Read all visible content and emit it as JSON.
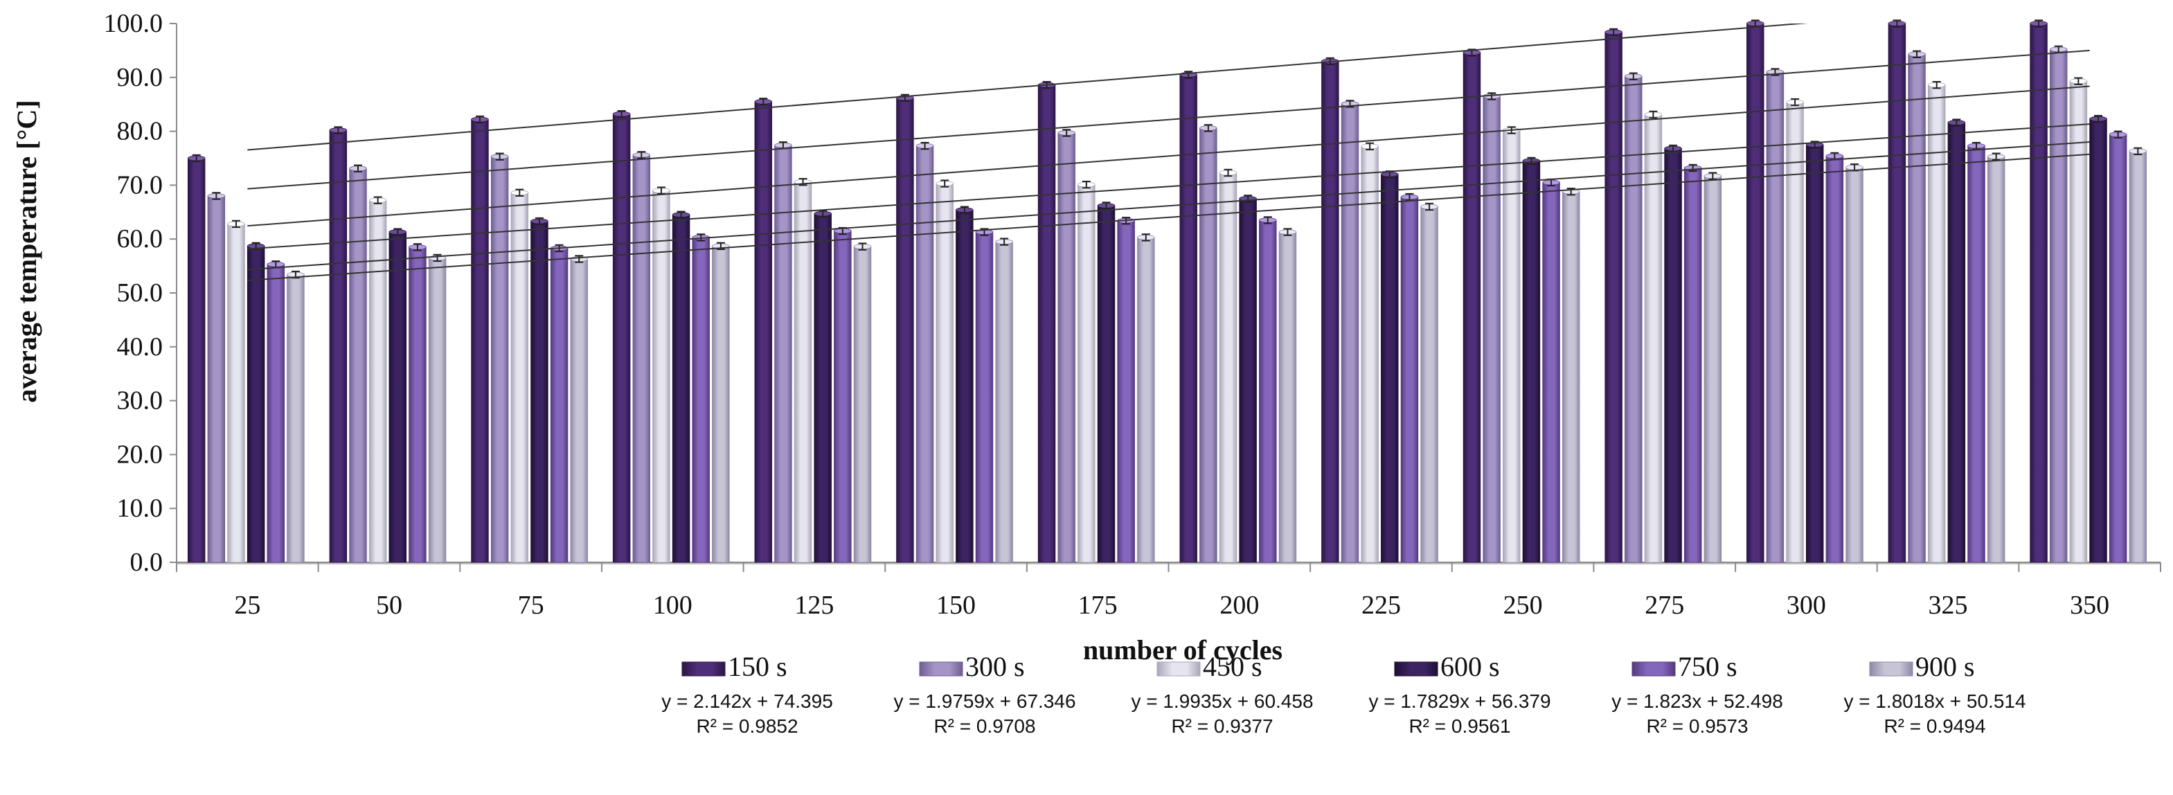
{
  "chart_data": {
    "type": "bar",
    "title": "",
    "xlabel": "number of cycles",
    "ylabel": "average temperature [°C]",
    "ylim": [
      0,
      100
    ],
    "yticks": [
      "0.0",
      "10.0",
      "20.0",
      "30.0",
      "40.0",
      "50.0",
      "60.0",
      "70.0",
      "80.0",
      "90.0",
      "100.0"
    ],
    "categories": [
      "25",
      "50",
      "75",
      "100",
      "125",
      "150",
      "175",
      "200",
      "225",
      "250",
      "275",
      "300",
      "325",
      "350"
    ],
    "grid": false,
    "legend_position": "bottom",
    "error_bars": true,
    "trendlines": true,
    "series": [
      {
        "name": "150 s",
        "color_top": "#7d5aa6",
        "color_mid": "#4e2e78",
        "color_dark": "#2c1547",
        "values": [
          75.0,
          80.2,
          82.2,
          83.2,
          85.5,
          86.2,
          88.6,
          90.5,
          93.0,
          94.6,
          98.4,
          100.0,
          100.0,
          100.0
        ],
        "trendline": {
          "slope": 2.142,
          "intercept": 74.395
        },
        "equation": "y = 2.142x + 74.395",
        "r2": "R² = 0.9852"
      },
      {
        "name": "300 s",
        "color_top": "#d6cce6",
        "color_mid": "#a595c6",
        "color_dark": "#6e5e93",
        "values": [
          68.0,
          73.1,
          75.3,
          75.6,
          77.4,
          77.3,
          79.7,
          80.6,
          85.1,
          86.5,
          90.2,
          91.0,
          94.3,
          95.2
        ],
        "trendline": {
          "slope": 1.9759,
          "intercept": 67.346
        },
        "equation": "y = 1.9759x + 67.346",
        "r2": "R² = 0.9708"
      },
      {
        "name": "450 s",
        "color_top": "#ffffff",
        "color_mid": "#e6e4ee",
        "color_dark": "#a9a6b8",
        "values": [
          62.8,
          67.2,
          68.6,
          69.0,
          70.6,
          70.3,
          70.1,
          72.3,
          77.2,
          80.2,
          83.1,
          85.4,
          88.6,
          89.3
        ],
        "trendline": {
          "slope": 1.9935,
          "intercept": 60.458
        },
        "equation": "y = 1.9935x + 60.458",
        "r2": "R² = 0.9377"
      },
      {
        "name": "600 s",
        "color_top": "#6a4c94",
        "color_mid": "#3c2362",
        "color_dark": "#1e0f33",
        "values": [
          58.7,
          61.3,
          63.3,
          64.5,
          64.7,
          65.4,
          66.2,
          67.5,
          72.0,
          74.5,
          76.8,
          77.5,
          81.6,
          82.3
        ],
        "trendline": {
          "slope": 1.7829,
          "intercept": 56.379
        },
        "equation": "y = 1.7829x + 56.379",
        "r2": "R² = 0.9561"
      },
      {
        "name": "750 s",
        "color_top": "#b49be0",
        "color_mid": "#8566bd",
        "color_dark": "#54397e",
        "values": [
          55.3,
          58.5,
          58.3,
          60.3,
          61.5,
          61.3,
          63.4,
          63.5,
          67.8,
          70.5,
          73.2,
          75.4,
          77.3,
          79.4
        ],
        "trendline": {
          "slope": 1.823,
          "intercept": 52.498
        },
        "equation": "y = 1.823x + 52.498",
        "r2": "R² = 0.9573"
      },
      {
        "name": "900 s",
        "color_top": "#eceaf3",
        "color_mid": "#c8c4d8",
        "color_dark": "#8e89a4",
        "values": [
          53.4,
          56.5,
          56.3,
          58.7,
          58.6,
          59.5,
          60.3,
          61.3,
          66.0,
          68.8,
          71.7,
          73.3,
          75.3,
          76.3
        ],
        "trendline": {
          "slope": 1.8018,
          "intercept": 50.514
        },
        "equation": "y = 1.8018x + 50.514",
        "r2": "R² = 0.9494"
      }
    ]
  }
}
